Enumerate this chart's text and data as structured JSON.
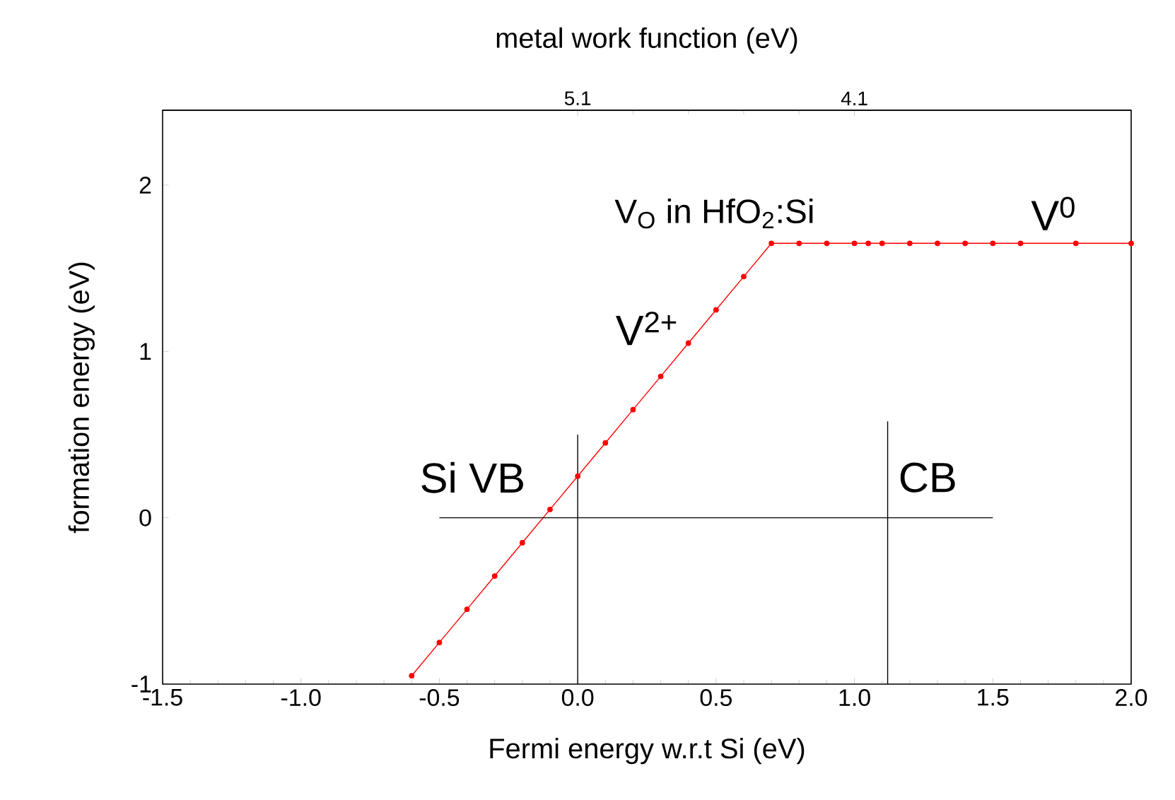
{
  "chart_data": {
    "type": "line",
    "xlabel": "Fermi energy w.r.t Si (eV)",
    "ylabel": "formation energy (eV)",
    "x2label": "metal work function (eV)",
    "xlim": [
      -1.5,
      2.0
    ],
    "xticks": [
      {
        "value": -1.5,
        "label": "-1.5"
      },
      {
        "value": -1.0,
        "label": "-1.0"
      },
      {
        "value": -0.5,
        "label": "-0.5"
      },
      {
        "value": 0,
        "label": "0.0"
      },
      {
        "value": 0.5,
        "label": "0.5"
      },
      {
        "value": 1.0,
        "label": "1.0"
      },
      {
        "value": 1.5,
        "label": "1.5"
      },
      {
        "value": 2.0,
        "label": "2.0"
      }
    ],
    "ylim": [
      -1,
      2.45
    ],
    "yticks": [
      -1,
      0,
      1,
      2
    ],
    "x2lim": [
      6.6,
      3.1
    ],
    "x2ticks": [
      5.1,
      4.1
    ],
    "series": [
      {
        "color": "#ff0000",
        "marker": "circle",
        "x": [
          -0.6,
          -0.5,
          -0.4,
          -0.3,
          -0.2,
          -0.1,
          0.0,
          0.1,
          0.2,
          0.3,
          0.4,
          0.5,
          0.6,
          0.7,
          0.8,
          0.9,
          1.0,
          1.05,
          1.1,
          1.2,
          1.3,
          1.4,
          1.5,
          1.6,
          1.8,
          2.0
        ],
        "values": [
          -0.95,
          -0.75,
          -0.55,
          -0.35,
          -0.15,
          0.05,
          0.25,
          0.45,
          0.65,
          0.85,
          1.05,
          1.25,
          1.45,
          1.65,
          1.65,
          1.65,
          1.65,
          1.65,
          1.65,
          1.65,
          1.65,
          1.65,
          1.65,
          1.65,
          1.65,
          1.65
        ]
      },
      {
        "color": "#000000",
        "marker": "none",
        "x": [
          -0.5,
          1.5
        ],
        "values": [
          0,
          0
        ]
      },
      {
        "color": "#000000",
        "marker": "none",
        "x": [
          0,
          0
        ],
        "values": [
          -1,
          0.5
        ]
      },
      {
        "color": "#000000",
        "marker": "none",
        "x": [
          1.12,
          1.12
        ],
        "values": [
          -1,
          0.58
        ]
      }
    ],
    "annotations": [
      "V$_{O}$ in HfO$_{2}$:Si",
      "V$^{2+}$",
      "V$^{0}$",
      "Si VB",
      "CB"
    ]
  }
}
